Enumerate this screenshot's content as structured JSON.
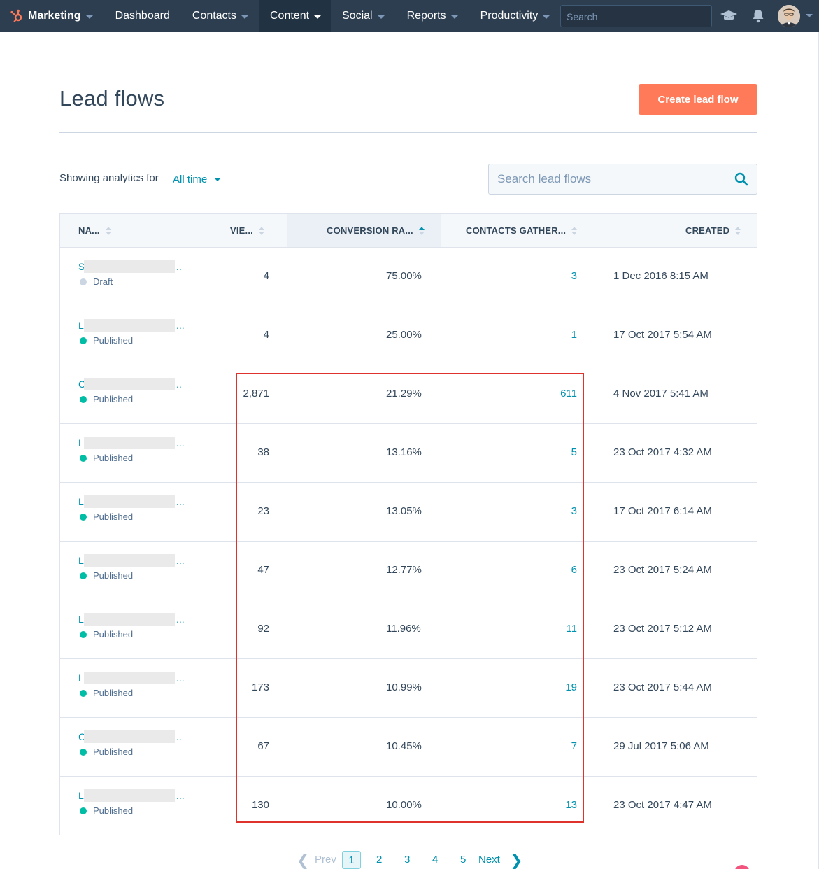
{
  "nav": {
    "brand": "Marketing",
    "items": [
      {
        "label": "Dashboard",
        "caret": false,
        "active": false
      },
      {
        "label": "Contacts",
        "caret": true,
        "active": false
      },
      {
        "label": "Content",
        "caret": true,
        "active": true
      },
      {
        "label": "Social",
        "caret": true,
        "active": false
      },
      {
        "label": "Reports",
        "caret": true,
        "active": false
      },
      {
        "label": "Productivity",
        "caret": true,
        "active": false
      }
    ],
    "search_placeholder": "Search",
    "icons": [
      "graduation-cap-icon",
      "bell-icon",
      "user-avatar"
    ]
  },
  "page": {
    "title": "Lead flows",
    "create_button": "Create lead flow"
  },
  "filter": {
    "label": "Showing analytics for",
    "value": "All time",
    "search_placeholder": "Search lead flows"
  },
  "table": {
    "columns": [
      {
        "label": "NA...",
        "sorted": false
      },
      {
        "label": "VIE...",
        "sorted": false
      },
      {
        "label": "CONVERSION RA...",
        "sorted": true
      },
      {
        "label": "CONTACTS GATHER...",
        "sorted": false
      },
      {
        "label": "CREATED",
        "sorted": false
      }
    ],
    "rows": [
      {
        "initial": "S",
        "dots": "..",
        "status": "Draft",
        "views": "4",
        "rate": "75.00%",
        "contacts": "3",
        "created": "1 Dec 2016 8:15 AM"
      },
      {
        "initial": "L",
        "dots": "...",
        "status": "Published",
        "views": "4",
        "rate": "25.00%",
        "contacts": "1",
        "created": "17 Oct 2017 5:54 AM"
      },
      {
        "initial": "C",
        "dots": "..",
        "status": "Published",
        "views": "2,871",
        "rate": "21.29%",
        "contacts": "611",
        "created": "4 Nov 2017 5:41 AM"
      },
      {
        "initial": "L",
        "dots": "...",
        "status": "Published",
        "views": "38",
        "rate": "13.16%",
        "contacts": "5",
        "created": "23 Oct 2017 4:32 AM"
      },
      {
        "initial": "L",
        "dots": "...",
        "status": "Published",
        "views": "23",
        "rate": "13.05%",
        "contacts": "3",
        "created": "17 Oct 2017 6:14 AM"
      },
      {
        "initial": "L",
        "dots": "...",
        "status": "Published",
        "views": "47",
        "rate": "12.77%",
        "contacts": "6",
        "created": "23 Oct 2017 5:24 AM"
      },
      {
        "initial": "L",
        "dots": "...",
        "status": "Published",
        "views": "92",
        "rate": "11.96%",
        "contacts": "11",
        "created": "23 Oct 2017 5:12 AM"
      },
      {
        "initial": "L",
        "dots": "...",
        "status": "Published",
        "views": "173",
        "rate": "10.99%",
        "contacts": "19",
        "created": "23 Oct 2017 5:44 AM"
      },
      {
        "initial": "C",
        "dots": "..",
        "status": "Published",
        "views": "67",
        "rate": "10.45%",
        "contacts": "7",
        "created": "29 Jul 2017 5:06 AM"
      },
      {
        "initial": "L",
        "dots": "...",
        "status": "Published",
        "views": "130",
        "rate": "10.00%",
        "contacts": "13",
        "created": "23 Oct 2017 4:47 AM"
      }
    ]
  },
  "pagination": {
    "prev": "Prev",
    "next": "Next",
    "pages": [
      "1",
      "2",
      "3",
      "4",
      "5"
    ],
    "current": "1"
  },
  "colors": {
    "nav_bg": "#2d3e50",
    "accent": "#0091ae",
    "primary_button": "#ff7a59",
    "draft_dot": "#cbd6e2",
    "published_dot": "#00bda5",
    "highlight_border": "#e0322c"
  }
}
